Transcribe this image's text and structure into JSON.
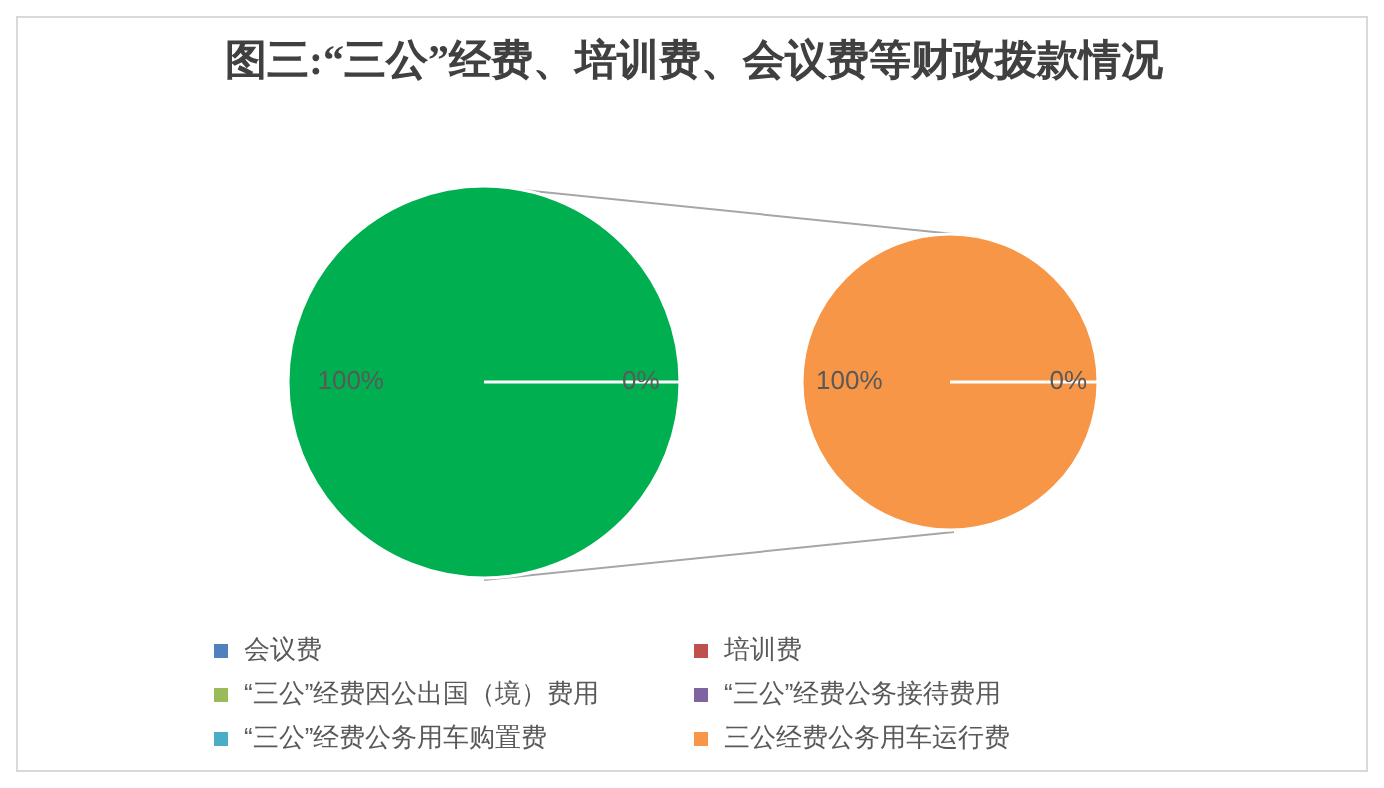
{
  "chart_data": [
    {
      "type": "pie",
      "title": "图三:“三公”经费、培训费、会议费等财政拨款情况",
      "categories": [
        null,
        null
      ],
      "values": [
        100,
        0
      ],
      "colors": [
        "#00b050",
        "#00b050"
      ],
      "value_labels": [
        "100%",
        "0%"
      ]
    },
    {
      "type": "pie",
      "categories": [
        "会议费",
        "培训费",
        "“三公”经费因公出国（境）费用",
        "“三公”经费公务接待费用",
        "“三公”经费公务用车购置费",
        "三公经费公务用车运行费"
      ],
      "values": [
        0,
        0,
        0,
        0,
        0,
        100
      ],
      "colors": [
        "#4f81bd",
        "#c0504d",
        "#9bbb59",
        "#8064a2",
        "#4bacc6",
        "#f79646"
      ],
      "value_labels": [
        null,
        null,
        null,
        null,
        "0%",
        "100%"
      ],
      "legend": "bottom"
    }
  ]
}
